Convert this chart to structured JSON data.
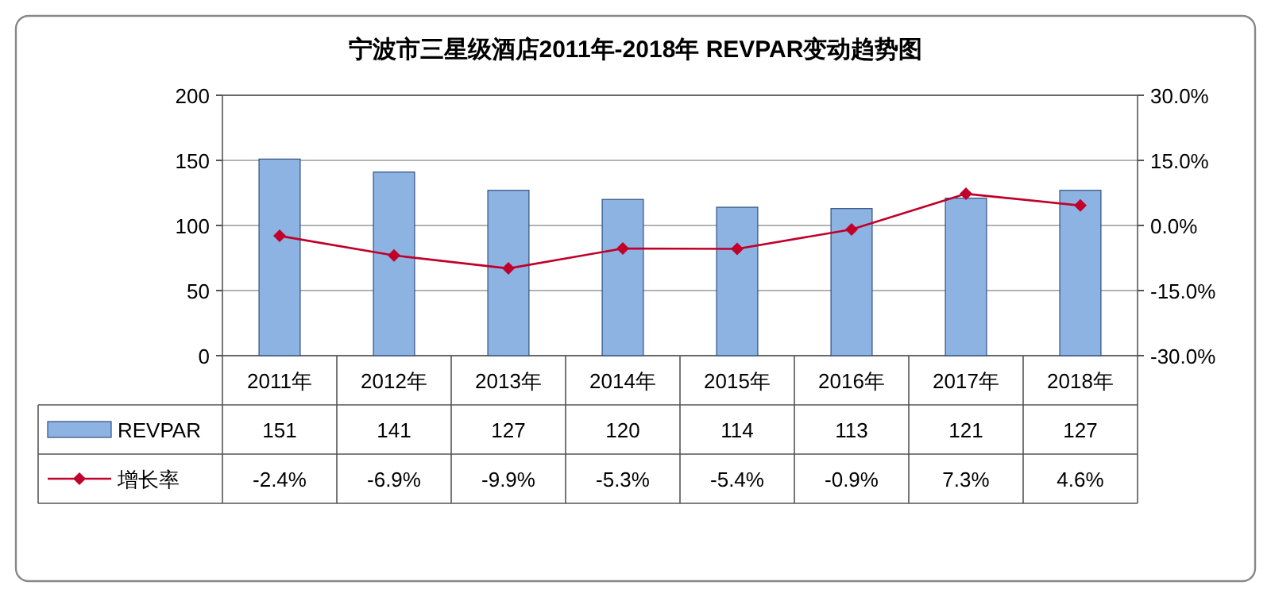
{
  "chart_data": {
    "type": "bar",
    "title": "宁波市三星级酒店2011年-2018年 REVPAR变动趋势图",
    "categories": [
      "2011年",
      "2012年",
      "2013年",
      "2014年",
      "2015年",
      "2016年",
      "2017年",
      "2018年"
    ],
    "series": [
      {
        "name": "REVPAR",
        "color": "#8db3e2",
        "values": [
          151,
          141,
          127,
          120,
          114,
          113,
          121,
          127
        ],
        "value_labels": [
          "151",
          "141",
          "127",
          "120",
          "114",
          "113",
          "121",
          "127"
        ]
      },
      {
        "name": "增长率",
        "type": "line",
        "axis": "y2",
        "color": "#c0002a",
        "marker": "diamond",
        "values": [
          -2.4,
          -6.9,
          -9.9,
          -5.3,
          -5.4,
          -0.9,
          7.3,
          4.6
        ],
        "value_labels": [
          "-2.4%",
          "-6.9%",
          "-9.9%",
          "-5.3%",
          "-5.4%",
          "-0.9%",
          "7.3%",
          "4.6%"
        ]
      }
    ],
    "ylim": [
      0,
      200
    ],
    "yticks": [
      0,
      50,
      100,
      150,
      200
    ],
    "y2lim": [
      -30,
      30
    ],
    "y2ticks": [
      {
        "value": -30,
        "label": "-30.0%"
      },
      {
        "value": -15,
        "label": "-15.0%"
      },
      {
        "value": 0,
        "label": "0.0%"
      },
      {
        "value": 15,
        "label": "15.0%"
      },
      {
        "value": 30,
        "label": "30.0%"
      }
    ],
    "grid": "y",
    "legend": "bottom"
  }
}
